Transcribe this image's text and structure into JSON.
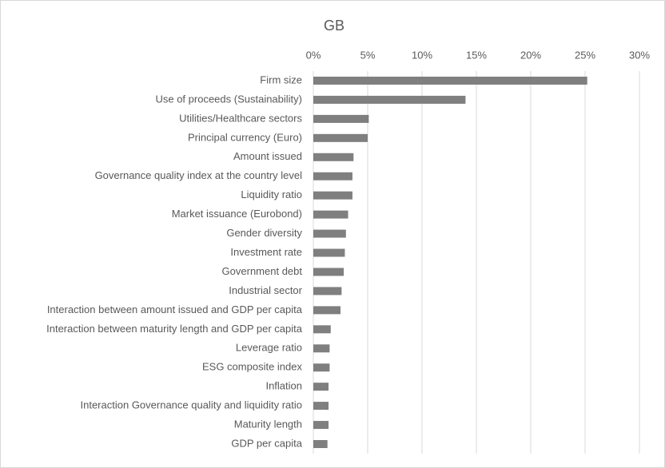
{
  "chart_data": {
    "type": "bar",
    "orientation": "horizontal",
    "title": "GB",
    "categories": [
      "Firm size",
      "Use of proceeds (Sustainability)",
      "Utilities/Healthcare sectors",
      "Principal currency (Euro)",
      "Amount issued",
      "Governance quality index at the country level",
      "Liquidity ratio",
      "Market issuance (Eurobond)",
      "Gender diversity",
      "Investment rate",
      "Government debt",
      "Industrial sector",
      "Interaction between amount issued and GDP per capita",
      "Interaction between maturity length and GDP per capita",
      "Leverage ratio",
      "ESG composite index",
      "Inflation",
      "Interaction Governance quality and liquidity ratio",
      "Maturity length",
      "GDP per capita"
    ],
    "values": [
      25.2,
      14.0,
      5.1,
      5.0,
      3.7,
      3.6,
      3.6,
      3.2,
      3.0,
      2.9,
      2.8,
      2.6,
      2.5,
      1.6,
      1.5,
      1.5,
      1.4,
      1.4,
      1.4,
      1.3
    ],
    "color": "#7f7f7f",
    "xlim": [
      0,
      30
    ],
    "xticks": [
      {
        "value": 0,
        "label": "0%"
      },
      {
        "value": 5,
        "label": "5%"
      },
      {
        "value": 10,
        "label": "10%"
      },
      {
        "value": 15,
        "label": "15%"
      },
      {
        "value": 20,
        "label": "20%"
      },
      {
        "value": 25,
        "label": "25%"
      },
      {
        "value": 30,
        "label": "30%"
      }
    ],
    "grid": true
  }
}
